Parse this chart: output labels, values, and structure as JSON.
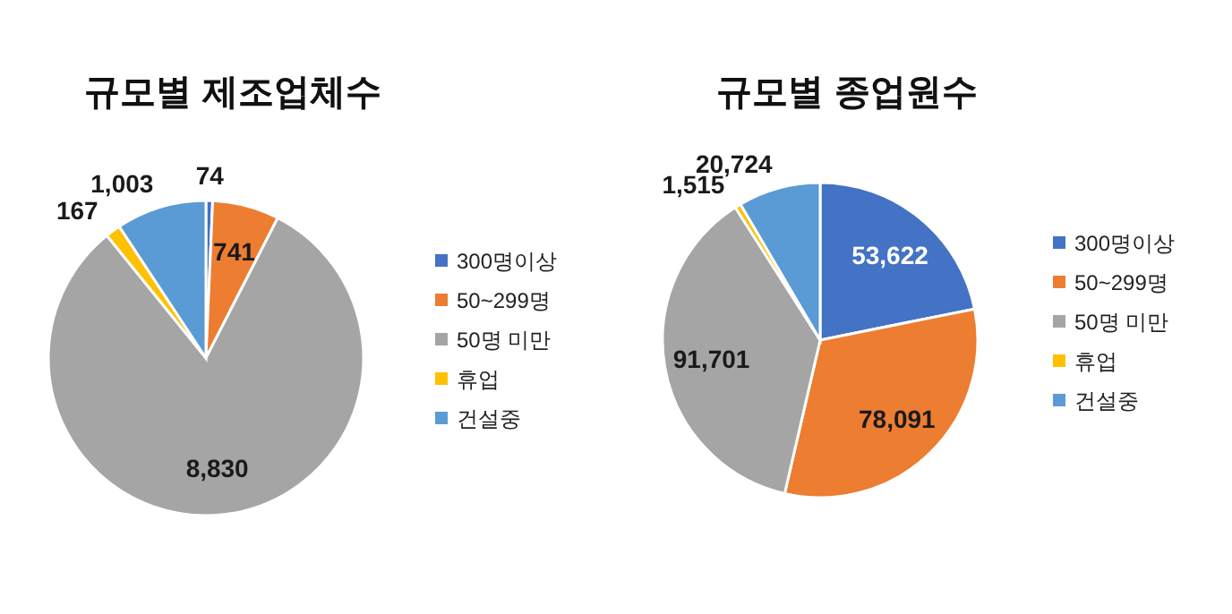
{
  "chart_data": [
    {
      "type": "pie",
      "title": "규모별 제조업체수",
      "categories": [
        "300명이상",
        "50~299명",
        "50명 미만",
        "휴업",
        "건설중"
      ],
      "values": [
        74,
        741,
        8830,
        167,
        1003
      ],
      "colors": [
        "#4472c4",
        "#ed7d31",
        "#a5a5a5",
        "#ffc000",
        "#5b9bd5"
      ],
      "value_labels": [
        "74",
        "741",
        "8,830",
        "167",
        "1,003"
      ],
      "legend": "right"
    },
    {
      "type": "pie",
      "title": "규모별 종업원수",
      "categories": [
        "300명이상",
        "50~299명",
        "50명 미만",
        "휴업",
        "건설중"
      ],
      "values": [
        53622,
        78091,
        91701,
        1515,
        20724
      ],
      "colors": [
        "#4472c4",
        "#ed7d31",
        "#a5a5a5",
        "#ffc000",
        "#5b9bd5"
      ],
      "value_labels": [
        "53,622",
        "78,091",
        "91,701",
        "1,515",
        "20,724"
      ],
      "legend": "right"
    }
  ]
}
